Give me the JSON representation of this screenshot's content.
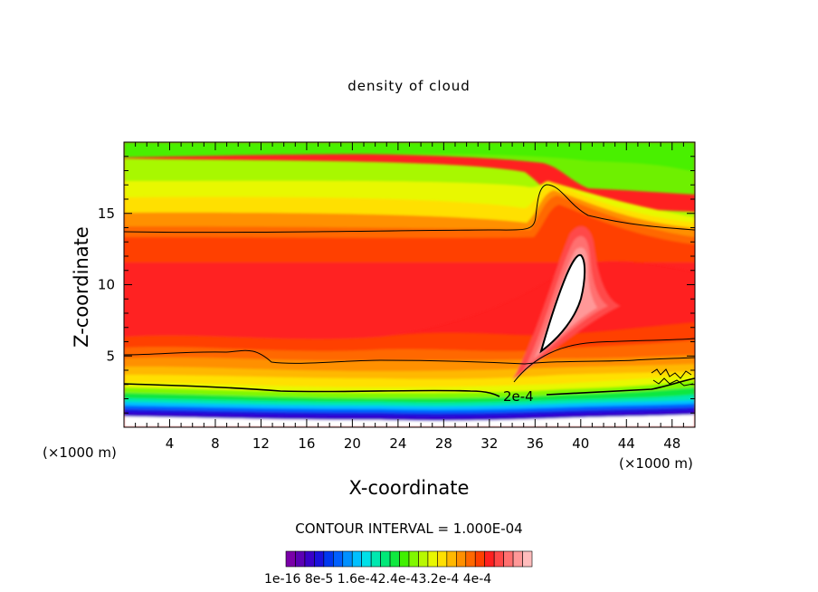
{
  "chart_data": {
    "type": "heatmap",
    "title": "density of cloud",
    "xlabel": "X-coordinate",
    "ylabel": "Z-coordinate",
    "x_unit": "(×1000 m)",
    "xlim": [
      0,
      50
    ],
    "ylim": [
      0,
      20
    ],
    "x_ticks": [
      "4",
      "8",
      "12",
      "16",
      "20",
      "24",
      "28",
      "32",
      "36",
      "40",
      "44",
      "48"
    ],
    "y_ticks": [
      "5",
      "10",
      "15"
    ],
    "contour_label": "2e-4",
    "contour_interval_text": "CONTOUR INTERVAL = 1.000E-04",
    "colorbar": {
      "labels_text": "1e-16  8e-5 1.6e-42.4e-43.2e-4 4e-4",
      "colors": [
        "#7a00a8",
        "#5c00b4",
        "#3a00c8",
        "#1a10dc",
        "#0038f0",
        "#0060ff",
        "#0090ff",
        "#00c0ff",
        "#00e0e8",
        "#00e8b0",
        "#00e878",
        "#10e840",
        "#40f000",
        "#80f800",
        "#b8f800",
        "#e8f800",
        "#ffe000",
        "#ffb800",
        "#ff9000",
        "#ff6800",
        "#ff4000",
        "#ff2020",
        "#ff4848",
        "#ff7070",
        "#ff9898",
        "#ffbcbc"
      ]
    }
  }
}
